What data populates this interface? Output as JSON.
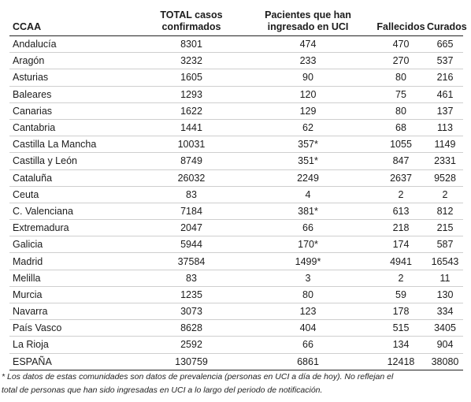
{
  "headers": {
    "ccaa": "CCAA",
    "total_line1": "TOTAL casos",
    "total_line2": "confirmados",
    "uci_line1": "Pacientes que han",
    "uci_line2": "ingresado en UCI",
    "fallecidos": "Fallecidos",
    "curados": "Curados"
  },
  "rows": [
    {
      "ccaa": "Andalucía",
      "total": "8301",
      "uci": "474",
      "fallecidos": "470",
      "curados": "665"
    },
    {
      "ccaa": "Aragón",
      "total": "3232",
      "uci": "233",
      "fallecidos": "270",
      "curados": "537"
    },
    {
      "ccaa": "Asturias",
      "total": "1605",
      "uci": "90",
      "fallecidos": "80",
      "curados": "216"
    },
    {
      "ccaa": "Baleares",
      "total": "1293",
      "uci": "120",
      "fallecidos": "75",
      "curados": "461"
    },
    {
      "ccaa": "Canarias",
      "total": "1622",
      "uci": "129",
      "fallecidos": "80",
      "curados": "137"
    },
    {
      "ccaa": "Cantabria",
      "total": "1441",
      "uci": "62",
      "fallecidos": "68",
      "curados": "113"
    },
    {
      "ccaa": "Castilla La Mancha",
      "total": "10031",
      "uci": "357*",
      "fallecidos": "1055",
      "curados": "1149"
    },
    {
      "ccaa": "Castilla y León",
      "total": "8749",
      "uci": "351*",
      "fallecidos": "847",
      "curados": "2331"
    },
    {
      "ccaa": "Cataluña",
      "total": "26032",
      "uci": "2249",
      "fallecidos": "2637",
      "curados": "9528"
    },
    {
      "ccaa": "Ceuta",
      "total": "83",
      "uci": "4",
      "fallecidos": "2",
      "curados": "2"
    },
    {
      "ccaa": "C. Valenciana",
      "total": "7184",
      "uci": "381*",
      "fallecidos": "613",
      "curados": "812"
    },
    {
      "ccaa": "Extremadura",
      "total": "2047",
      "uci": "66",
      "fallecidos": "218",
      "curados": "215"
    },
    {
      "ccaa": "Galicia",
      "total": "5944",
      "uci": "170*",
      "fallecidos": "174",
      "curados": "587"
    },
    {
      "ccaa": "Madrid",
      "total": "37584",
      "uci": "1499*",
      "fallecidos": "4941",
      "curados": "16543"
    },
    {
      "ccaa": "Melilla",
      "total": "83",
      "uci": "3",
      "fallecidos": "2",
      "curados": "11"
    },
    {
      "ccaa": "Murcia",
      "total": "1235",
      "uci": "80",
      "fallecidos": "59",
      "curados": "130"
    },
    {
      "ccaa": "Navarra",
      "total": "3073",
      "uci": "123",
      "fallecidos": "178",
      "curados": "334"
    },
    {
      "ccaa": "País Vasco",
      "total": "8628",
      "uci": "404",
      "fallecidos": "515",
      "curados": "3405"
    },
    {
      "ccaa": "La Rioja",
      "total": "2592",
      "uci": "66",
      "fallecidos": "134",
      "curados": "904"
    },
    {
      "ccaa": "ESPAÑA",
      "total": "130759",
      "uci": "6861",
      "fallecidos": "12418",
      "curados": "38080"
    }
  ],
  "footnote": {
    "line1": "* Los datos de estas comunidades son datos de prevalencia (personas en UCI a día de hoy). No reflejan el",
    "line2": "total de personas que han sido ingresadas en UCI a lo largo del periodo de notificación."
  }
}
